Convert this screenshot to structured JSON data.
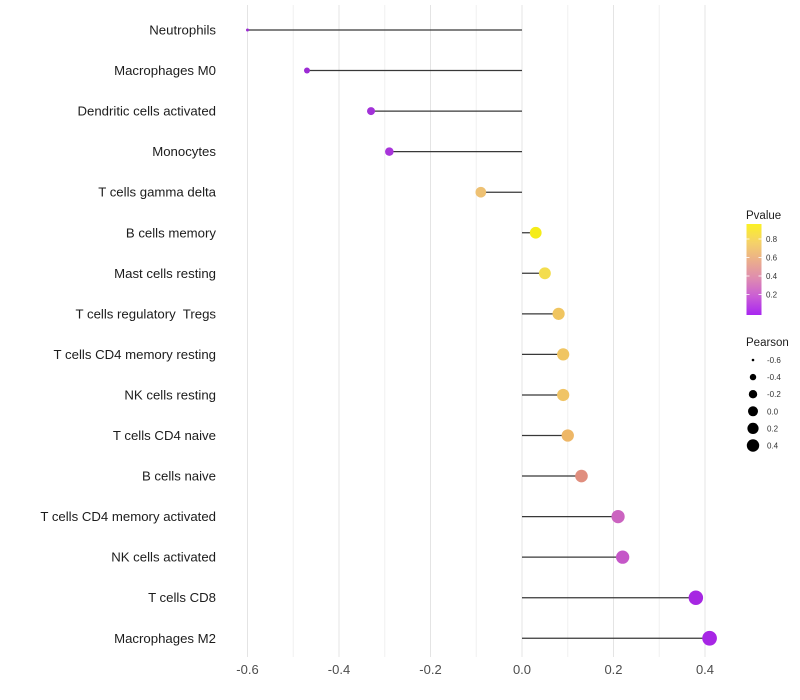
{
  "chart_data": {
    "type": "scatter",
    "style": "horizontal-lollipop",
    "title": "",
    "xlabel": "",
    "ylabel": "",
    "xlim": [
      -0.655,
      0.45
    ],
    "x_ticks": [
      -0.6,
      -0.4,
      -0.2,
      0.0,
      0.2,
      0.4
    ],
    "grid": {
      "vertical_minor_step": 0.1,
      "vertical_major_step": 0.2,
      "horizontal": false
    },
    "points": [
      {
        "label": "Neutrophils",
        "pearson": -0.6,
        "color": "#9b2bd2"
      },
      {
        "label": "Macrophages M0",
        "pearson": -0.47,
        "color": "#9c2bd4"
      },
      {
        "label": "Dendritic cells activated",
        "pearson": -0.33,
        "color": "#a232d8"
      },
      {
        "label": "Monocytes",
        "pearson": -0.29,
        "color": "#a834da"
      },
      {
        "label": "T cells gamma delta",
        "pearson": -0.09,
        "color": "#eec173"
      },
      {
        "label": "B cells memory",
        "pearson": 0.03,
        "color": "#f5ec18"
      },
      {
        "label": "Mast cells resting",
        "pearson": 0.05,
        "color": "#f3dd4e"
      },
      {
        "label": "T cells regulatory  Tregs",
        "pearson": 0.08,
        "color": "#f0c560"
      },
      {
        "label": "T cells CD4 memory resting",
        "pearson": 0.09,
        "color": "#f0c562"
      },
      {
        "label": "NK cells resting",
        "pearson": 0.09,
        "color": "#f0c465"
      },
      {
        "label": "T cells CD4 naive",
        "pearson": 0.1,
        "color": "#eeb767"
      },
      {
        "label": "B cells naive",
        "pearson": 0.13,
        "color": "#e08e7e"
      },
      {
        "label": "T cells CD4 memory activated",
        "pearson": 0.21,
        "color": "#cb63c0"
      },
      {
        "label": "NK cells activated",
        "pearson": 0.22,
        "color": "#c557c8"
      },
      {
        "label": "T cells CD8",
        "pearson": 0.38,
        "color": "#a627e2"
      },
      {
        "label": "Macrophages M2",
        "pearson": 0.41,
        "color": "#a726e5"
      }
    ],
    "legend_pvalue": {
      "title": "Pvalue",
      "tick_labels": [
        "0.8",
        "0.6",
        "0.4",
        "0.2"
      ],
      "gradient_top_to_bottom": [
        "#fbf125",
        "#f5d267",
        "#ebae8b",
        "#de8bb0",
        "#c95cd6",
        "#a826f0"
      ]
    },
    "legend_pearson": {
      "title": "Pearson",
      "entries": [
        "-0.6",
        "-0.4",
        "-0.2",
        "0.0",
        "0.2",
        "0.4"
      ],
      "dot_color": "#000000"
    }
  },
  "colors": {
    "background": "#ffffff",
    "stem": "#383838",
    "grid_major": "#e4e4e4",
    "grid_minor": "#f0f0f0",
    "axis_tick_text": "#4d4d4d",
    "category_label_text": "#1c1c1c",
    "legend_title_text": "#1c1c1c",
    "legend_tick_text": "#333333",
    "colorbar_tick_mark": "#ffffff"
  }
}
